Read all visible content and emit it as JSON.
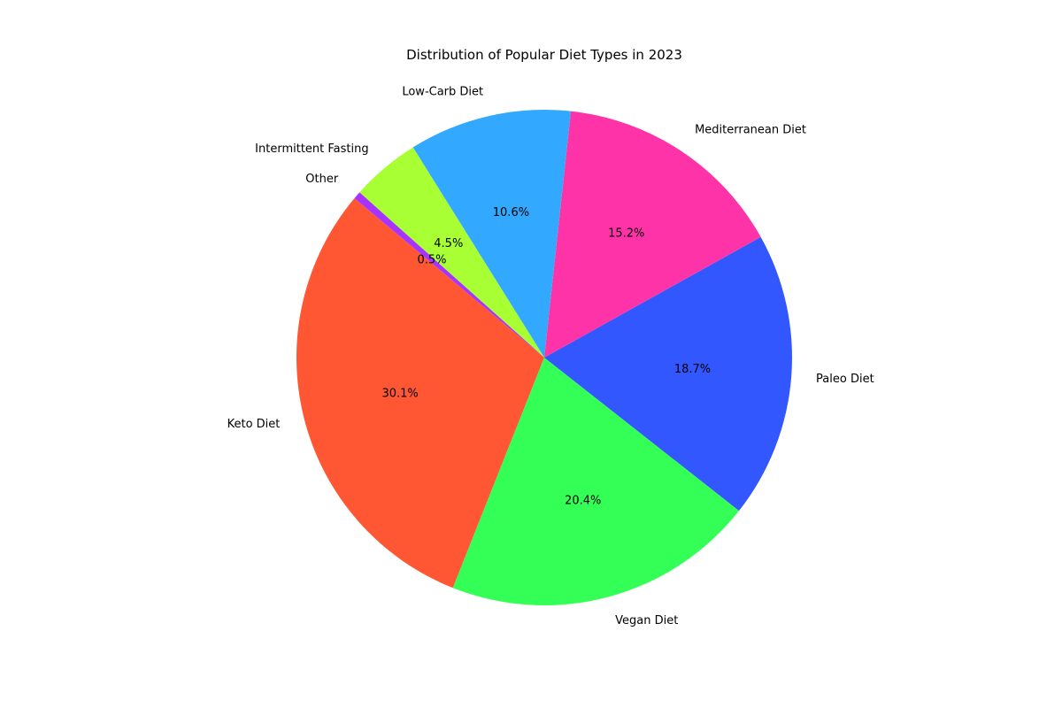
{
  "chart_data": {
    "type": "pie",
    "title": "Distribution of Popular Diet Types in 2023",
    "slices": [
      {
        "label": "Keto Diet",
        "value": 30.1,
        "pct_label": "30.1%",
        "color": "#ff5733"
      },
      {
        "label": "Vegan Diet",
        "value": 20.4,
        "pct_label": "20.4%",
        "color": "#33ff57"
      },
      {
        "label": "Paleo Diet",
        "value": 18.7,
        "pct_label": "18.7%",
        "color": "#3357ff"
      },
      {
        "label": "Mediterranean Diet",
        "value": 15.2,
        "pct_label": "15.2%",
        "color": "#ff33a8"
      },
      {
        "label": "Low-Carb Diet",
        "value": 10.6,
        "pct_label": "10.6%",
        "color": "#33a8ff"
      },
      {
        "label": "Intermittent Fasting",
        "value": 4.5,
        "pct_label": "4.5%",
        "color": "#a8ff33"
      },
      {
        "label": "Other",
        "value": 0.5,
        "pct_label": "0.5%",
        "color": "#a833ff"
      }
    ],
    "start_angle_deg": 140,
    "direction": "counterclockwise",
    "legend": "none"
  }
}
